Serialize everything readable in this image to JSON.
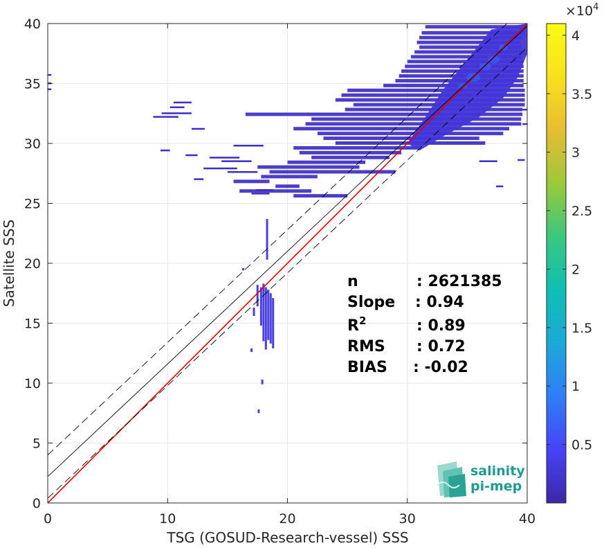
{
  "chart_data": {
    "type": "heatmap",
    "title": "",
    "xlabel": "TSG (GOSUD-Research-vessel) SSS",
    "ylabel": "Satellite SSS",
    "xlim": [
      0,
      40
    ],
    "ylim": [
      0,
      40
    ],
    "x_ticks": [
      0,
      10,
      20,
      30,
      40
    ],
    "y_ticks": [
      0,
      5,
      10,
      15,
      20,
      25,
      30,
      35,
      40
    ],
    "grid": true,
    "colorbar": {
      "range": [
        0,
        41000
      ],
      "exponent_label": "×10",
      "exponent_power": "4",
      "ticks": [
        0.5,
        1,
        1.5,
        2,
        2.5,
        3,
        3.5,
        4
      ],
      "tick_labels": [
        "0.5",
        "1",
        "1.5",
        "2",
        "2.5",
        "3",
        "3.5",
        "4"
      ],
      "colors": [
        "#3e26a8",
        "#4743f8",
        "#2f7ef7",
        "#1ca9d8",
        "#0ebfb3",
        "#39c87f",
        "#9bc93a",
        "#e6bd31",
        "#f9e11d",
        "#f9fb14"
      ]
    },
    "lines": [
      {
        "name": "identity",
        "color": "#e00000",
        "points": [
          [
            0,
            0
          ],
          [
            40,
            40
          ]
        ]
      },
      {
        "name": "fit",
        "color": "#000000",
        "style": "solid",
        "points": [
          [
            0,
            2.2
          ],
          [
            40,
            39.8
          ]
        ]
      },
      {
        "name": "fit-upper",
        "color": "#000000",
        "style": "dashed",
        "points": [
          [
            0,
            4.0
          ],
          [
            40,
            41.6
          ]
        ]
      },
      {
        "name": "fit-lower",
        "color": "#000000",
        "style": "dashed",
        "points": [
          [
            0,
            0.4
          ],
          [
            40,
            38.0
          ]
        ]
      }
    ],
    "stats": [
      {
        "label": "n",
        "sup": "",
        "value": ": 2621385"
      },
      {
        "label": "Slope",
        "sup": "",
        "value": ": 0.94"
      },
      {
        "label": "R",
        "sup": "2",
        "value": ": 0.89"
      },
      {
        "label": "RMS",
        "sup": "",
        "value": ": 0.72"
      },
      {
        "label": "BIAS",
        "sup": "",
        "value": ": -0.02"
      }
    ],
    "density_segments": [
      [
        31.5,
        40,
        39.7
      ],
      [
        31.2,
        39.8,
        39.2
      ],
      [
        31.0,
        39.6,
        38.8
      ],
      [
        30.8,
        39.4,
        38.4
      ],
      [
        31.0,
        39.5,
        38.0
      ],
      [
        30.6,
        39.6,
        37.6
      ],
      [
        30.3,
        39.6,
        37.2
      ],
      [
        30.0,
        39.7,
        36.8
      ],
      [
        29.8,
        39.7,
        36.4
      ],
      [
        29.5,
        39.7,
        36.0
      ],
      [
        29.3,
        39.7,
        35.6
      ],
      [
        29.0,
        39.7,
        35.2
      ],
      [
        28.0,
        39.7,
        34.8
      ],
      [
        25.0,
        39.8,
        34.4
      ],
      [
        24.5,
        39.8,
        34.0
      ],
      [
        24.0,
        39.8,
        33.6
      ],
      [
        25.5,
        39.8,
        33.2
      ],
      [
        24.8,
        39.6,
        32.8
      ],
      [
        16.5,
        39.6,
        32.4
      ],
      [
        22.0,
        39.5,
        32.0
      ],
      [
        21.5,
        39.5,
        31.6
      ],
      [
        20.5,
        38.5,
        31.2
      ],
      [
        22.5,
        38.0,
        30.8
      ],
      [
        23.0,
        36.0,
        30.4
      ],
      [
        24.0,
        36.5,
        30.0
      ],
      [
        20.5,
        31.0,
        29.6
      ],
      [
        21.0,
        29.5,
        29.2
      ],
      [
        22.0,
        28.5,
        28.8
      ],
      [
        20.0,
        26.5,
        28.4
      ],
      [
        17.5,
        26.0,
        28.0
      ],
      [
        18.5,
        29.0,
        27.6
      ],
      [
        17.8,
        22.5,
        27.2
      ],
      [
        15.5,
        18.5,
        26.8
      ],
      [
        19.0,
        21.0,
        26.4
      ],
      [
        16.0,
        22.0,
        26.0
      ],
      [
        20.5,
        25.0,
        25.6
      ]
    ],
    "scatter_segments": [
      [
        8.8,
        10.9,
        32.2
      ],
      [
        9.5,
        12.0,
        32.5
      ],
      [
        10.2,
        11.4,
        33.0
      ],
      [
        10.5,
        12.0,
        33.4
      ],
      [
        12.0,
        13.1,
        31.2
      ],
      [
        9.4,
        10.2,
        29.4
      ],
      [
        11.5,
        12.5,
        29.0
      ],
      [
        12.2,
        13.0,
        27.0
      ],
      [
        13.0,
        15.8,
        27.9
      ],
      [
        13.5,
        16.0,
        28.8
      ],
      [
        15.0,
        17.5,
        27.6
      ],
      [
        14.5,
        17.0,
        28.5
      ],
      [
        15.5,
        18.0,
        29.8
      ],
      [
        17.4,
        18.8,
        26.1
      ],
      [
        17.0,
        18.5,
        25.8
      ],
      [
        0.0,
        0.3,
        35.7
      ],
      [
        0.0,
        0.3,
        35.0
      ],
      [
        0.0,
        0.3,
        34.5
      ],
      [
        37.4,
        38.0,
        26.4
      ],
      [
        39.2,
        39.8,
        28.6
      ],
      [
        39.6,
        40.0,
        32.8
      ],
      [
        39.6,
        40.0,
        31.6
      ],
      [
        36.0,
        37.5,
        28.5
      ]
    ],
    "column_segments": [
      [
        17.5,
        16.4,
        18.2
      ],
      [
        17.8,
        14.8,
        18.0
      ],
      [
        18.0,
        13.5,
        18.3
      ],
      [
        18.2,
        12.8,
        18.0
      ],
      [
        18.4,
        13.6,
        17.8
      ],
      [
        18.6,
        13.3,
        17.5
      ],
      [
        18.8,
        12.9,
        17.1
      ],
      [
        17.2,
        15.6,
        16.3
      ],
      [
        17.0,
        12.6,
        12.9
      ],
      [
        17.9,
        9.9,
        10.3
      ],
      [
        17.6,
        7.5,
        7.8
      ],
      [
        18.3,
        20.3,
        23.7
      ],
      [
        16.3,
        19.4,
        19.6
      ]
    ],
    "hotspots": [
      [
        35.5,
        35.5,
        0.6
      ],
      [
        36.5,
        36.4,
        0.5
      ],
      [
        34.6,
        34.8,
        0.4
      ],
      [
        37.2,
        37.0,
        0.5
      ],
      [
        38.0,
        38.0,
        0.4
      ]
    ]
  },
  "logo": {
    "line1": "salinity",
    "line2": "pi-mep"
  }
}
